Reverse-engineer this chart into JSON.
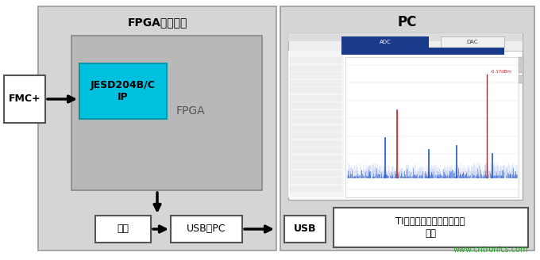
{
  "bg_color": "#ffffff",
  "outer_bg": "#e8e8e8",
  "title_fpga": "FPGA支持工具",
  "title_pc": "PC",
  "label_fmc": "FMC+",
  "label_jesd": "JESD204B/C\nIP",
  "label_fpga": "FPGA",
  "label_memory": "内存",
  "label_usb2pc": "USB至PC",
  "label_usb": "USB",
  "label_software": "TI的高速数据转换器专业版\n软件",
  "label_watermark": "www.cntronics.com",
  "jesd_color": "#00c0e0",
  "fpga_inner_color": "#b8b8b8",
  "fpga_outer_color": "#d5d5d5",
  "pc_outer_color": "#d5d5d5"
}
